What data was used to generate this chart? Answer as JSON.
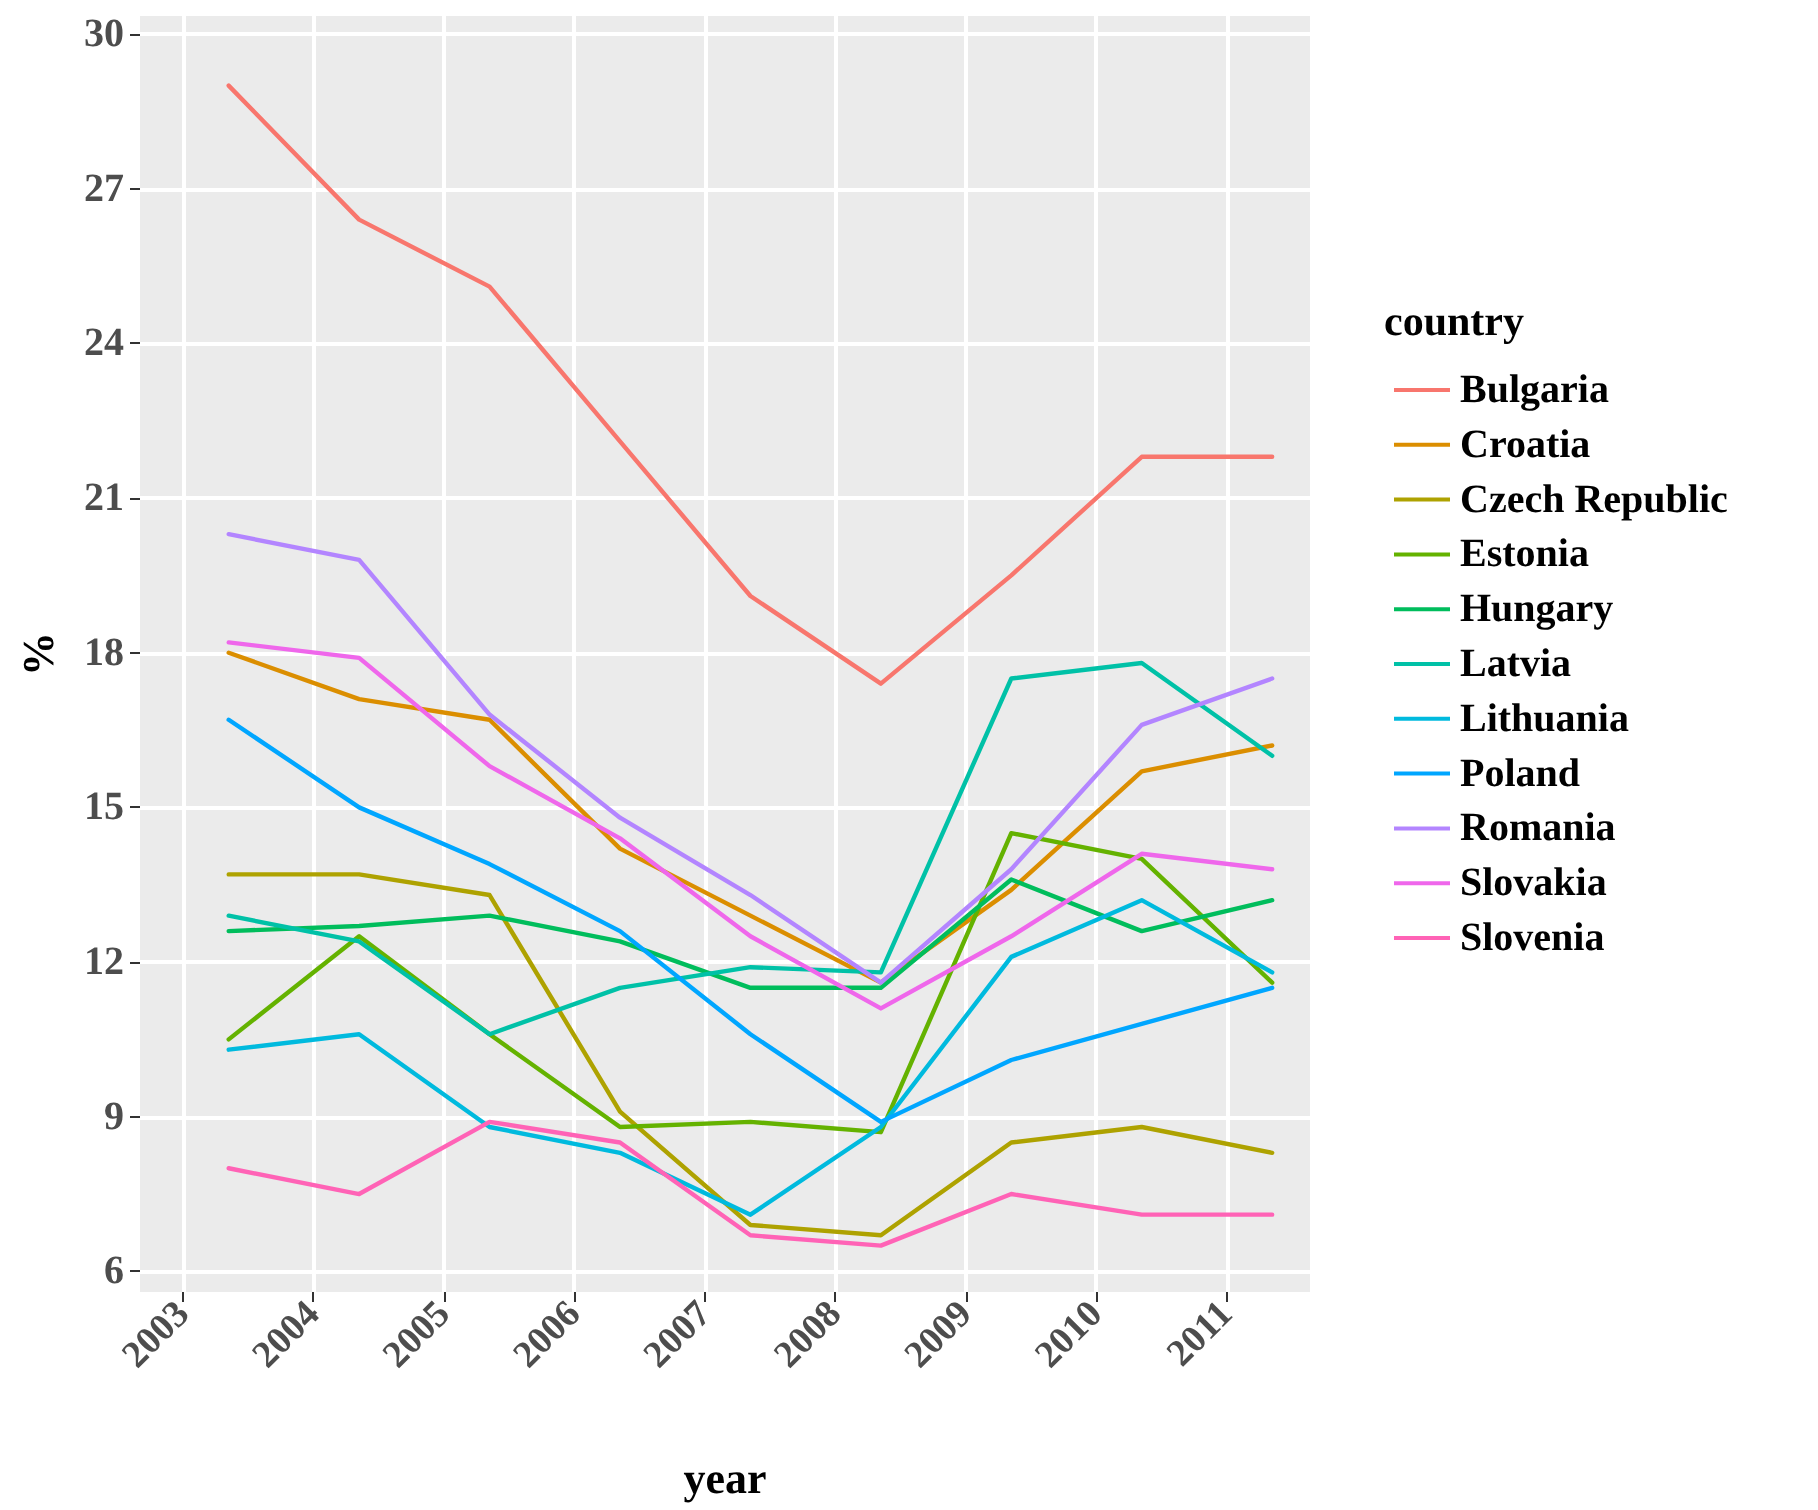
{
  "chart_data": {
    "type": "line",
    "xlabel": "year",
    "ylabel": "%",
    "legend_title": "country",
    "legend": "right",
    "grid": true,
    "line_style": "solid",
    "marker": "none",
    "x": [
      2003.35,
      2004.35,
      2005.35,
      2006.35,
      2007.35,
      2008.35,
      2009.35,
      2010.35,
      2011.35
    ],
    "xlim": [
      2002.67,
      2011.64
    ],
    "xticks": [
      2003,
      2004,
      2005,
      2006,
      2007,
      2008,
      2009,
      2010,
      2011
    ],
    "ylim": [
      5.6,
      30.35
    ],
    "yticks": [
      6,
      9,
      12,
      15,
      18,
      21,
      24,
      27,
      30
    ],
    "series": [
      {
        "name": "Bulgaria",
        "color": "#f8766d",
        "values": [
          29.0,
          26.4,
          25.1,
          22.1,
          19.1,
          17.4,
          19.5,
          21.8,
          21.8
        ]
      },
      {
        "name": "Croatia",
        "color": "#db8e00",
        "values": [
          18.0,
          17.1,
          16.7,
          14.2,
          12.9,
          11.6,
          13.4,
          15.7,
          16.2
        ]
      },
      {
        "name": "Czech Republic",
        "color": "#aea200",
        "values": [
          13.7,
          13.7,
          13.3,
          9.1,
          6.9,
          6.7,
          8.5,
          8.8,
          8.3
        ]
      },
      {
        "name": "Estonia",
        "color": "#64b200",
        "values": [
          10.5,
          12.5,
          10.6,
          8.8,
          8.9,
          8.7,
          14.5,
          14.0,
          11.6
        ]
      },
      {
        "name": "Hungary",
        "color": "#00bd5c",
        "values": [
          12.6,
          12.7,
          12.9,
          12.4,
          11.5,
          11.5,
          13.6,
          12.6,
          13.2
        ]
      },
      {
        "name": "Latvia",
        "color": "#00c1a7",
        "values": [
          12.9,
          12.4,
          10.6,
          11.5,
          11.9,
          11.8,
          17.5,
          17.8,
          16.0
        ]
      },
      {
        "name": "Lithuania",
        "color": "#00bade",
        "values": [
          10.3,
          10.6,
          8.8,
          8.3,
          7.1,
          8.8,
          12.1,
          13.2,
          11.8
        ]
      },
      {
        "name": "Poland",
        "color": "#00a6ff",
        "values": [
          16.7,
          15.0,
          13.9,
          12.6,
          10.6,
          8.9,
          10.1,
          10.8,
          11.5
        ]
      },
      {
        "name": "Romania",
        "color": "#b385ff",
        "values": [
          20.3,
          19.8,
          16.8,
          14.8,
          13.3,
          11.6,
          13.8,
          16.6,
          17.5
        ]
      },
      {
        "name": "Slovakia",
        "color": "#ef67eb",
        "values": [
          18.2,
          17.9,
          15.8,
          14.4,
          12.5,
          11.1,
          12.5,
          14.1,
          13.8
        ]
      },
      {
        "name": "Slovenia",
        "color": "#ff63b6",
        "values": [
          8.0,
          7.5,
          8.9,
          8.5,
          6.7,
          6.5,
          7.5,
          7.1,
          7.1
        ]
      }
    ]
  }
}
